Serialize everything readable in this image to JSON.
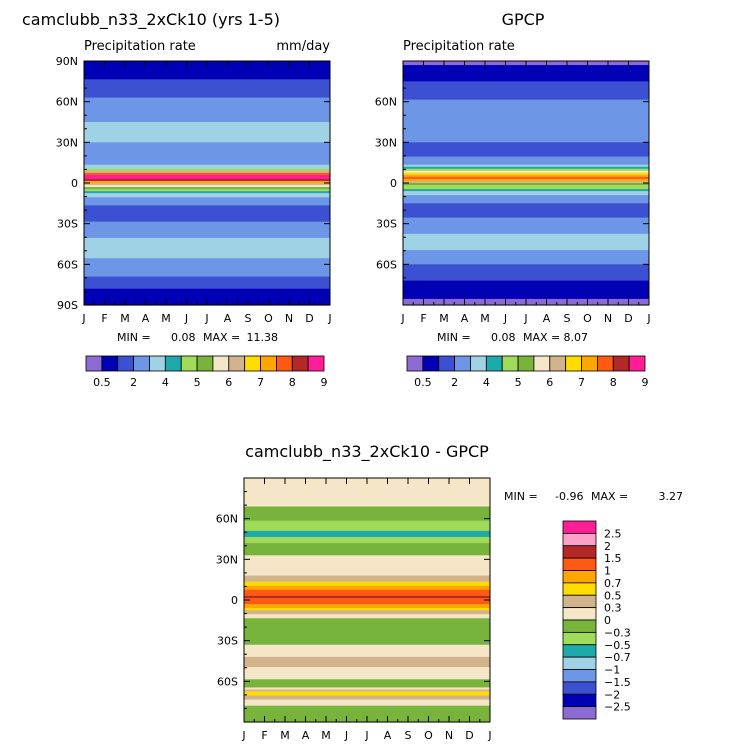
{
  "colors": {
    "bg_fill": "#ffffff",
    "frame": "#000000",
    "abs_palette": [
      "#8c6bd4",
      "#0000b4",
      "#3c50d2",
      "#6e96e6",
      "#a0d2e6",
      "#1eaaaa",
      "#a0dc5a",
      "#78b43c",
      "#f5e6c8",
      "#d2b48c",
      "#ffdc00",
      "#ffa500",
      "#ff5a14",
      "#b42828",
      "#ff1e96"
    ],
    "diff_palette": [
      "#8c6bd4",
      "#0000b4",
      "#3c50d2",
      "#6e96e6",
      "#a0d2e6",
      "#1eaaaa",
      "#a0dc5a",
      "#78b43c",
      "#f5e6c8",
      "#d2b48c",
      "#ffdc00",
      "#ffa500",
      "#ff5a14",
      "#b42828",
      "#ffa0c8",
      "#ff1e96"
    ]
  },
  "chart_data": [
    {
      "type": "heatmap",
      "panel": "model",
      "title": "camclubb_n33_2xCk10 (yrs 1-5)",
      "subtitle_left": "Precipitation rate",
      "subtitle_right": "mm/day",
      "x_ticks": [
        "J",
        "F",
        "M",
        "A",
        "M",
        "J",
        "J",
        "A",
        "S",
        "O",
        "N",
        "D",
        "J"
      ],
      "y_ticks": [
        "90N",
        "60N",
        "30N",
        "0",
        "30S",
        "60S",
        "90S"
      ],
      "ylim": [
        -90,
        90
      ],
      "stats": {
        "min_label": "MIN =",
        "min": "0.08",
        "max_label": "MAX =",
        "max": "11.38"
      },
      "colorbar_labels": [
        "0.5",
        "2",
        "4",
        "5",
        "6",
        "7",
        "8",
        "9"
      ],
      "contour_levels": [
        0.5,
        1,
        2,
        3,
        4,
        4.5,
        5,
        5.5,
        6,
        6.5,
        7,
        7.5,
        8,
        8.5,
        9
      ],
      "bands": [
        {
          "lat": 90,
          "value": 0.5
        },
        {
          "lat": 80,
          "value": 0.8
        },
        {
          "lat": 70,
          "value": 1.5
        },
        {
          "lat": 55,
          "value": 2.5
        },
        {
          "lat": 45,
          "value": 3.0
        },
        {
          "lat": 35,
          "value": 3.5
        },
        {
          "lat": 25,
          "value": 2.5
        },
        {
          "lat": 15,
          "value": 2.0
        },
        {
          "lat": 10,
          "value": 4.5
        },
        {
          "lat": 7,
          "value": 7.5
        },
        {
          "lat": 4,
          "value": 10.0
        },
        {
          "lat": 0,
          "value": 6.5
        },
        {
          "lat": -5,
          "value": 5.0
        },
        {
          "lat": -12,
          "value": 2.5
        },
        {
          "lat": -22,
          "value": 1.5
        },
        {
          "lat": -35,
          "value": 2.5
        },
        {
          "lat": -45,
          "value": 3.5
        },
        {
          "lat": -55,
          "value": 3.0
        },
        {
          "lat": -65,
          "value": 2.5
        },
        {
          "lat": -75,
          "value": 1.2
        },
        {
          "lat": -82,
          "value": 0.8
        },
        {
          "lat": -90,
          "value": 0.5
        }
      ]
    },
    {
      "type": "heatmap",
      "panel": "obs",
      "title": "GPCP",
      "subtitle_left": "Precipitation rate",
      "x_ticks": [
        "J",
        "F",
        "M",
        "A",
        "M",
        "J",
        "J",
        "A",
        "S",
        "O",
        "N",
        "D",
        "J"
      ],
      "y_ticks": [
        "60N",
        "30N",
        "0",
        "30S",
        "60S"
      ],
      "ylim": [
        -90,
        90
      ],
      "stats": {
        "min_label": "MIN =",
        "min": "0.08",
        "max_label": "MAX =",
        "max": "8.07"
      },
      "colorbar_labels": [
        "0.5",
        "2",
        "4",
        "5",
        "6",
        "7",
        "8",
        "9"
      ],
      "contour_levels": [
        0.5,
        1,
        2,
        3,
        4,
        4.5,
        5,
        5.5,
        6,
        6.5,
        7,
        7.5,
        8,
        8.5,
        9
      ],
      "bands": [
        {
          "lat": 90,
          "value": 0.4
        },
        {
          "lat": 78,
          "value": 0.8
        },
        {
          "lat": 68,
          "value": 1.5
        },
        {
          "lat": 55,
          "value": 2.5
        },
        {
          "lat": 45,
          "value": 3.0
        },
        {
          "lat": 35,
          "value": 2.5
        },
        {
          "lat": 25,
          "value": 1.5
        },
        {
          "lat": 15,
          "value": 2.5
        },
        {
          "lat": 9,
          "value": 5.0
        },
        {
          "lat": 6,
          "value": 7.0
        },
        {
          "lat": 3,
          "value": 8.0
        },
        {
          "lat": 0,
          "value": 5.5
        },
        {
          "lat": -4,
          "value": 4.5
        },
        {
          "lat": -10,
          "value": 2.5
        },
        {
          "lat": -20,
          "value": 1.5
        },
        {
          "lat": -30,
          "value": 2.5
        },
        {
          "lat": -45,
          "value": 3.5
        },
        {
          "lat": -55,
          "value": 2.5
        },
        {
          "lat": -65,
          "value": 1.5
        },
        {
          "lat": -75,
          "value": 0.8
        },
        {
          "lat": -85,
          "value": 0.5
        },
        {
          "lat": -90,
          "value": 0.4
        }
      ]
    },
    {
      "type": "heatmap",
      "panel": "difference",
      "title": "camclubb_n33_2xCk10 - GPCP",
      "x_ticks": [
        "J",
        "F",
        "M",
        "A",
        "M",
        "J",
        "J",
        "A",
        "S",
        "O",
        "N",
        "D",
        "J"
      ],
      "y_ticks": [
        "60N",
        "30N",
        "0",
        "30S",
        "60S"
      ],
      "ylim": [
        -90,
        90
      ],
      "stats": {
        "min_label": "MIN =",
        "min": "-0.96",
        "max_label": "MAX =",
        "max": "3.27"
      },
      "colorbar_labels": [
        "2.5",
        "2",
        "1.5",
        "1",
        "0.7",
        "0.5",
        "0.3",
        "0",
        "-0.3",
        "-0.5",
        "-0.7",
        "-1",
        "-1.5",
        "-2",
        "-2.5"
      ],
      "contour_levels": [
        -2.5,
        -2,
        -1.5,
        -1,
        -0.7,
        -0.5,
        -0.3,
        0,
        0.3,
        0.5,
        0.7,
        1,
        1.5,
        2,
        2.5
      ],
      "bands": [
        {
          "lat": 90,
          "value": 0.1
        },
        {
          "lat": 75,
          "value": 0.2
        },
        {
          "lat": 62,
          "value": -0.2
        },
        {
          "lat": 55,
          "value": -0.4
        },
        {
          "lat": 48,
          "value": -0.6
        },
        {
          "lat": 40,
          "value": -0.2
        },
        {
          "lat": 30,
          "value": 0.1
        },
        {
          "lat": 20,
          "value": 0.2
        },
        {
          "lat": 12,
          "value": 0.6
        },
        {
          "lat": 6,
          "value": 1.2
        },
        {
          "lat": 2,
          "value": 1.6
        },
        {
          "lat": -3,
          "value": 1.0
        },
        {
          "lat": -8,
          "value": 0.5
        },
        {
          "lat": -15,
          "value": -0.1
        },
        {
          "lat": -25,
          "value": -0.3
        },
        {
          "lat": -35,
          "value": 0.1
        },
        {
          "lat": -45,
          "value": 0.4
        },
        {
          "lat": -55,
          "value": 0.2
        },
        {
          "lat": -62,
          "value": -0.3
        },
        {
          "lat": -68,
          "value": 0.7
        },
        {
          "lat": -75,
          "value": 0.2
        },
        {
          "lat": -82,
          "value": -0.2
        },
        {
          "lat": -90,
          "value": -0.1
        }
      ]
    }
  ]
}
